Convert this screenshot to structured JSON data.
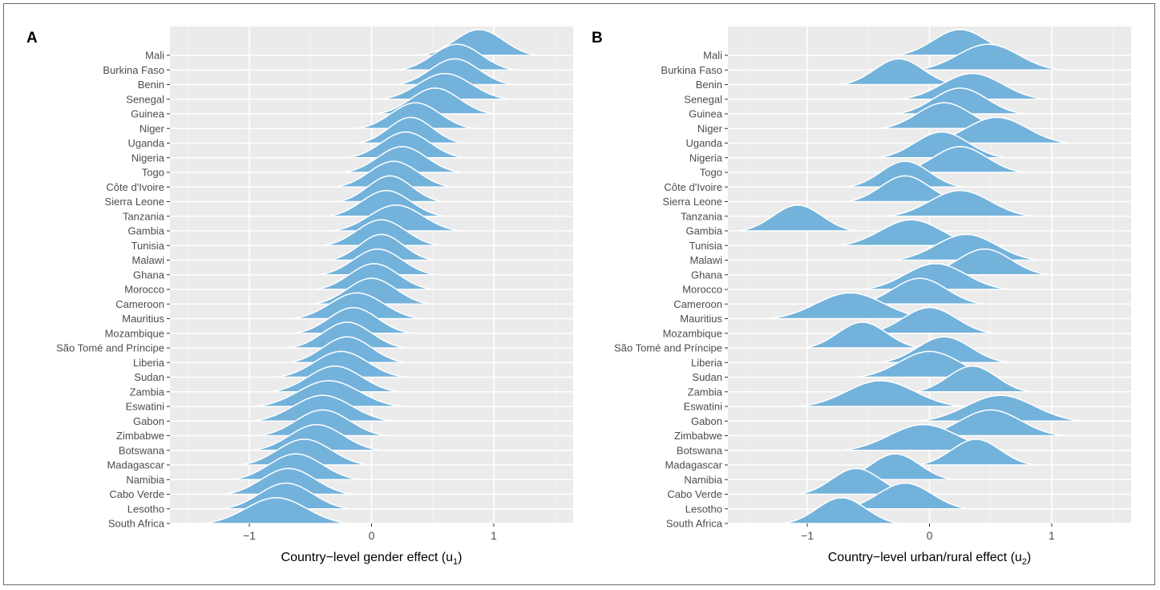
{
  "chart_data": [
    {
      "type": "ridgeline",
      "panel_tag": "A",
      "xlabel_main": "Country−level gender effect (u",
      "xlabel_sub": "1",
      "xlabel_close": ")",
      "xlim": [
        -1.65,
        1.65
      ],
      "x_ticks": [
        -1,
        0,
        1
      ],
      "x_tick_labels": [
        "−1",
        "0",
        "1"
      ],
      "grid": true,
      "color": "#73b2db",
      "categories": [
        "Mali",
        "Burkina Faso",
        "Benin",
        "Senegal",
        "Guinea",
        "Niger",
        "Uganda",
        "Nigeria",
        "Togo",
        "Côte d'Ivoire",
        "Sierra Leone",
        "Tanzania",
        "Gambia",
        "Tunisia",
        "Malawi",
        "Ghana",
        "Morocco",
        "Cameroon",
        "Mauritius",
        "Mozambique",
        "São Tomé and Príncipe",
        "Liberia",
        "Sudan",
        "Zambia",
        "Eswatini",
        "Gabon",
        "Zimbabwe",
        "Botswana",
        "Madagascar",
        "Namibia",
        "Cabo Verde",
        "Lesotho",
        "South Africa"
      ],
      "modes": [
        0.88,
        0.7,
        0.68,
        0.6,
        0.52,
        0.36,
        0.32,
        0.28,
        0.25,
        0.18,
        0.15,
        0.12,
        0.2,
        0.08,
        0.08,
        0.05,
        0.02,
        0.0,
        -0.12,
        -0.15,
        -0.2,
        -0.2,
        -0.25,
        -0.3,
        -0.35,
        -0.4,
        -0.4,
        -0.45,
        -0.55,
        -0.62,
        -0.68,
        -0.7,
        -0.78
      ],
      "spreads": [
        0.2,
        0.2,
        0.2,
        0.22,
        0.2,
        0.2,
        0.18,
        0.2,
        0.2,
        0.2,
        0.18,
        0.2,
        0.22,
        0.2,
        0.18,
        0.2,
        0.2,
        0.2,
        0.22,
        0.2,
        0.2,
        0.2,
        0.22,
        0.22,
        0.25,
        0.24,
        0.22,
        0.22,
        0.22,
        0.22,
        0.22,
        0.22,
        0.25
      ]
    },
    {
      "type": "ridgeline",
      "panel_tag": "B",
      "xlabel_main": "Country−level urban/rural effect (u",
      "xlabel_sub": "2",
      "xlabel_close": ")",
      "xlim": [
        -1.65,
        1.65
      ],
      "x_ticks": [
        -1,
        0,
        1
      ],
      "x_tick_labels": [
        "−1",
        "0",
        "1"
      ],
      "grid": true,
      "color": "#73b2db",
      "categories": [
        "Mali",
        "Burkina Faso",
        "Benin",
        "Senegal",
        "Guinea",
        "Niger",
        "Uganda",
        "Nigeria",
        "Togo",
        "Côte d'Ivoire",
        "Sierra Leone",
        "Tanzania",
        "Gambia",
        "Tunisia",
        "Malawi",
        "Ghana",
        "Morocco",
        "Cameroon",
        "Mauritius",
        "Mozambique",
        "São Tomé and Príncipe",
        "Liberia",
        "Sudan",
        "Zambia",
        "Eswatini",
        "Gabon",
        "Zimbabwe",
        "Botswana",
        "Madagascar",
        "Namibia",
        "Cabo Verde",
        "Lesotho",
        "South Africa"
      ],
      "modes": [
        0.25,
        0.48,
        -0.25,
        0.35,
        0.25,
        0.12,
        0.55,
        0.1,
        0.25,
        -0.2,
        -0.2,
        0.25,
        -1.08,
        -0.15,
        0.3,
        0.45,
        0.05,
        -0.08,
        -0.65,
        0.0,
        -0.55,
        0.12,
        0.0,
        0.35,
        -0.4,
        0.58,
        0.5,
        -0.05,
        0.38,
        -0.28,
        -0.6,
        -0.2,
        -0.72
      ],
      "spreads": [
        0.22,
        0.25,
        0.2,
        0.25,
        0.22,
        0.22,
        0.25,
        0.22,
        0.22,
        0.2,
        0.2,
        0.25,
        0.2,
        0.25,
        0.25,
        0.22,
        0.25,
        0.22,
        0.28,
        0.22,
        0.2,
        0.22,
        0.25,
        0.2,
        0.28,
        0.28,
        0.25,
        0.28,
        0.2,
        0.2,
        0.2,
        0.22,
        0.2
      ]
    }
  ]
}
